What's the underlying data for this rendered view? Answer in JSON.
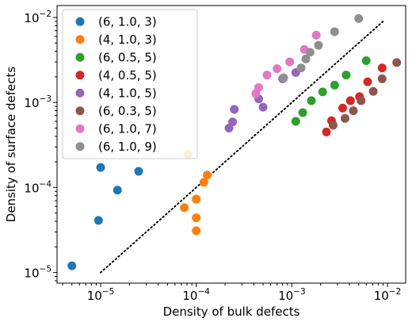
{
  "chart_data": {
    "type": "scatter",
    "xscale": "log",
    "yscale": "log",
    "xlim": [
      3.5e-06,
      0.0155
    ],
    "ylim": [
      7.5e-06,
      0.0138
    ],
    "xlabel": "Density of bulk defects",
    "ylabel": "Density of surface defects",
    "xticks": [
      {
        "value": 1e-05,
        "base": "10",
        "exp": "−5"
      },
      {
        "value": 0.0001,
        "base": "10",
        "exp": "−4"
      },
      {
        "value": 0.001,
        "base": "10",
        "exp": "−3"
      },
      {
        "value": 0.01,
        "base": "10",
        "exp": "−2"
      }
    ],
    "yticks": [
      {
        "value": 1e-05,
        "base": "10",
        "exp": "−5"
      },
      {
        "value": 0.0001,
        "base": "10",
        "exp": "−4"
      },
      {
        "value": 0.001,
        "base": "10",
        "exp": "−3"
      },
      {
        "value": 0.01,
        "base": "10",
        "exp": "−2"
      }
    ],
    "grid": false,
    "legend_position": "top-left",
    "reference_line": {
      "style": "dotted",
      "color": "#000000",
      "points": [
        [
          1e-05,
          1e-05
        ],
        [
          0.009,
          0.009
        ]
      ]
    },
    "series": [
      {
        "name": "(6, 1.0, 3)",
        "color": "#1f77b4",
        "points": [
          [
            5e-06,
            1.2e-05
          ],
          [
            9.5e-06,
            4.1e-05
          ],
          [
            1.5e-05,
            9.3e-05
          ],
          [
            1e-05,
            0.000172
          ],
          [
            2.5e-05,
            0.000155
          ]
        ]
      },
      {
        "name": "(4, 1.0, 3)",
        "color": "#ff7f0e",
        "points": [
          [
            7.5e-05,
            5.8e-05
          ],
          [
            8.2e-05,
            0.000245
          ],
          [
            0.0001,
            7.3e-05
          ],
          [
            0.0001,
            4.4e-05
          ],
          [
            0.0001,
            3.1e-05
          ],
          [
            0.00012,
            0.000115
          ],
          [
            0.00013,
            0.00014
          ]
        ]
      },
      {
        "name": "(6, 0.5, 5)",
        "color": "#2ca02c",
        "points": [
          [
            0.0011,
            0.0006
          ],
          [
            0.0013,
            0.00076
          ],
          [
            0.0016,
            0.00105
          ],
          [
            0.0021,
            0.00133
          ],
          [
            0.0028,
            0.0016
          ],
          [
            0.0037,
            0.0021
          ],
          [
            0.006,
            0.0031
          ]
        ]
      },
      {
        "name": "(4, 0.5, 5)",
        "color": "#d62728",
        "points": [
          [
            0.0023,
            0.00045
          ],
          [
            0.0026,
            0.00061
          ],
          [
            0.0034,
            0.00086
          ],
          [
            0.0041,
            0.00105
          ],
          [
            0.0051,
            0.00117
          ],
          [
            0.0062,
            0.00175
          ],
          [
            0.0088,
            0.00255
          ]
        ]
      },
      {
        "name": "(4, 1.0, 5)",
        "color": "#9467bd",
        "points": [
          [
            0.00022,
            0.0005
          ],
          [
            0.00024,
            0.00059
          ],
          [
            0.00025,
            0.00083
          ],
          [
            0.00045,
            0.0011
          ],
          [
            0.0005,
            0.00088
          ],
          [
            0.0008,
            0.0019
          ],
          [
            0.0011,
            0.00225
          ]
        ]
      },
      {
        "name": "(6, 0.3, 5)",
        "color": "#8c564b",
        "points": [
          [
            0.0027,
            0.00054
          ],
          [
            0.0036,
            0.00065
          ],
          [
            0.0044,
            0.0008
          ],
          [
            0.0053,
            0.00105
          ],
          [
            0.0071,
            0.00135
          ],
          [
            0.0088,
            0.0019
          ],
          [
            0.0125,
            0.00295
          ]
        ]
      },
      {
        "name": "(6, 1.0, 7)",
        "color": "#e377c2",
        "points": [
          [
            0.00042,
            0.00127
          ],
          [
            0.00045,
            0.0015
          ],
          [
            0.00055,
            0.0021
          ],
          [
            0.0007,
            0.0025
          ],
          [
            0.00095,
            0.003
          ],
          [
            0.00135,
            0.0042
          ],
          [
            0.0018,
            0.0062
          ]
        ]
      },
      {
        "name": "(6, 1.0, 9)",
        "color": "#8f8f8f",
        "points": [
          [
            0.00082,
            0.00195
          ],
          [
            0.00125,
            0.00255
          ],
          [
            0.0014,
            0.00325
          ],
          [
            0.00155,
            0.0039
          ],
          [
            0.0019,
            0.0047
          ],
          [
            0.0028,
            0.0068
          ],
          [
            0.005,
            0.0097
          ]
        ]
      }
    ]
  }
}
